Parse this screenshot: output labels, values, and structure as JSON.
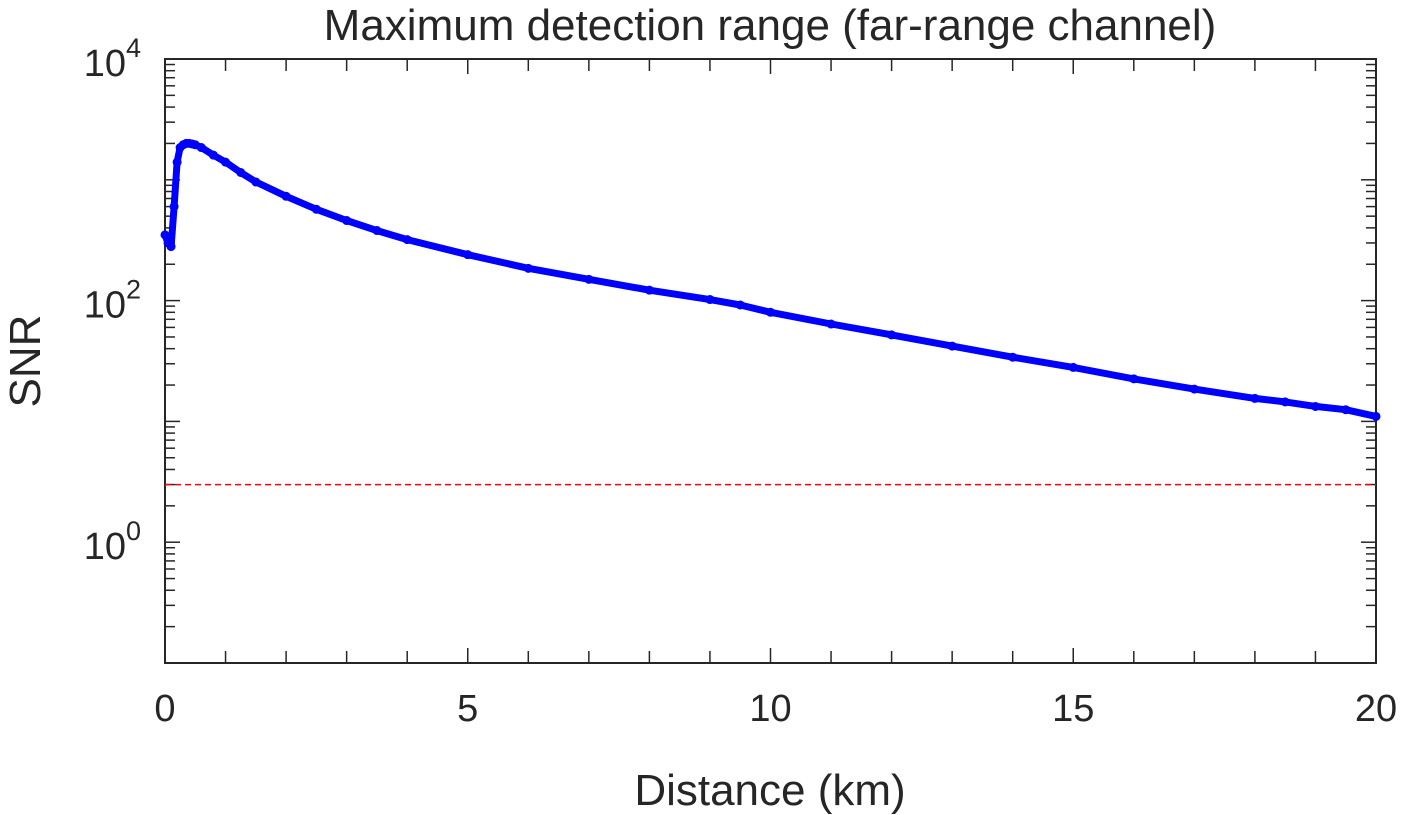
{
  "chart_data": {
    "type": "line",
    "title": "Maximum detection range (far-range channel)",
    "xlabel": "Distance (km)",
    "ylabel": "SNR",
    "xlim": [
      0,
      20
    ],
    "ylim": [
      0.1,
      10000
    ],
    "y_scale": "log",
    "x_ticks": [
      "0",
      "5",
      "10",
      "15",
      "20"
    ],
    "y_ticks": [
      {
        "base": "10",
        "exp": "0"
      },
      {
        "base": "10",
        "exp": "2"
      },
      {
        "base": "10",
        "exp": "4"
      }
    ],
    "grid": false,
    "box": true,
    "series": [
      {
        "color": "#0000ff",
        "marker": "asterisk",
        "x": [
          0.0,
          0.05,
          0.1,
          0.15,
          0.2,
          0.25,
          0.3,
          0.35,
          0.4,
          0.45,
          0.5,
          0.6,
          0.8,
          1.0,
          1.25,
          1.5,
          2.0,
          2.5,
          3.0,
          3.5,
          4.0,
          5.0,
          6.0,
          7.0,
          8.0,
          9.0,
          9.5,
          10.0,
          11.0,
          12.0,
          13.0,
          14.0,
          15.0,
          16.0,
          17.0,
          18.0,
          18.5,
          19.0,
          19.5,
          20.0
        ],
        "y": [
          350,
          300,
          280,
          600,
          1400,
          1850,
          1950,
          2000,
          2000,
          1980,
          1950,
          1850,
          1600,
          1400,
          1150,
          960,
          730,
          570,
          460,
          380,
          320,
          240,
          185,
          150,
          122,
          102,
          92,
          80,
          64,
          52,
          42,
          34,
          28,
          22.5,
          18.5,
          15.5,
          14.5,
          13.3,
          12.5,
          11
        ]
      },
      {
        "color": "#ff0000",
        "style": "dashed",
        "x": [
          0,
          20
        ],
        "y": [
          3,
          3
        ]
      }
    ]
  }
}
